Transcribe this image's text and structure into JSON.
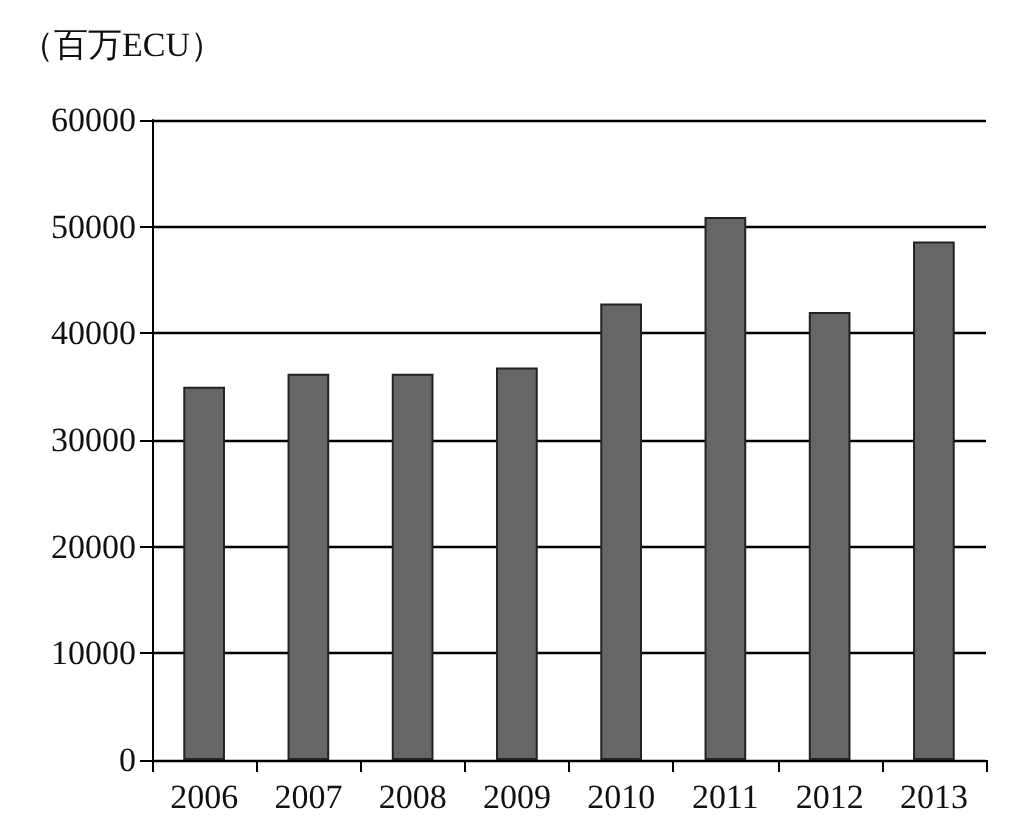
{
  "chart_data": {
    "type": "bar",
    "ylabel": "（百万ECU）",
    "categories": [
      "2006",
      "2007",
      "2008",
      "2009",
      "2010",
      "2011",
      "2012",
      "2013"
    ],
    "values": [
      35000,
      36200,
      36200,
      36800,
      42800,
      50900,
      42000,
      48600
    ],
    "color": "#666666",
    "ylim": [
      0,
      60000
    ],
    "yticks": [
      0,
      10000,
      20000,
      30000,
      40000,
      50000,
      60000
    ],
    "grid": "y"
  }
}
